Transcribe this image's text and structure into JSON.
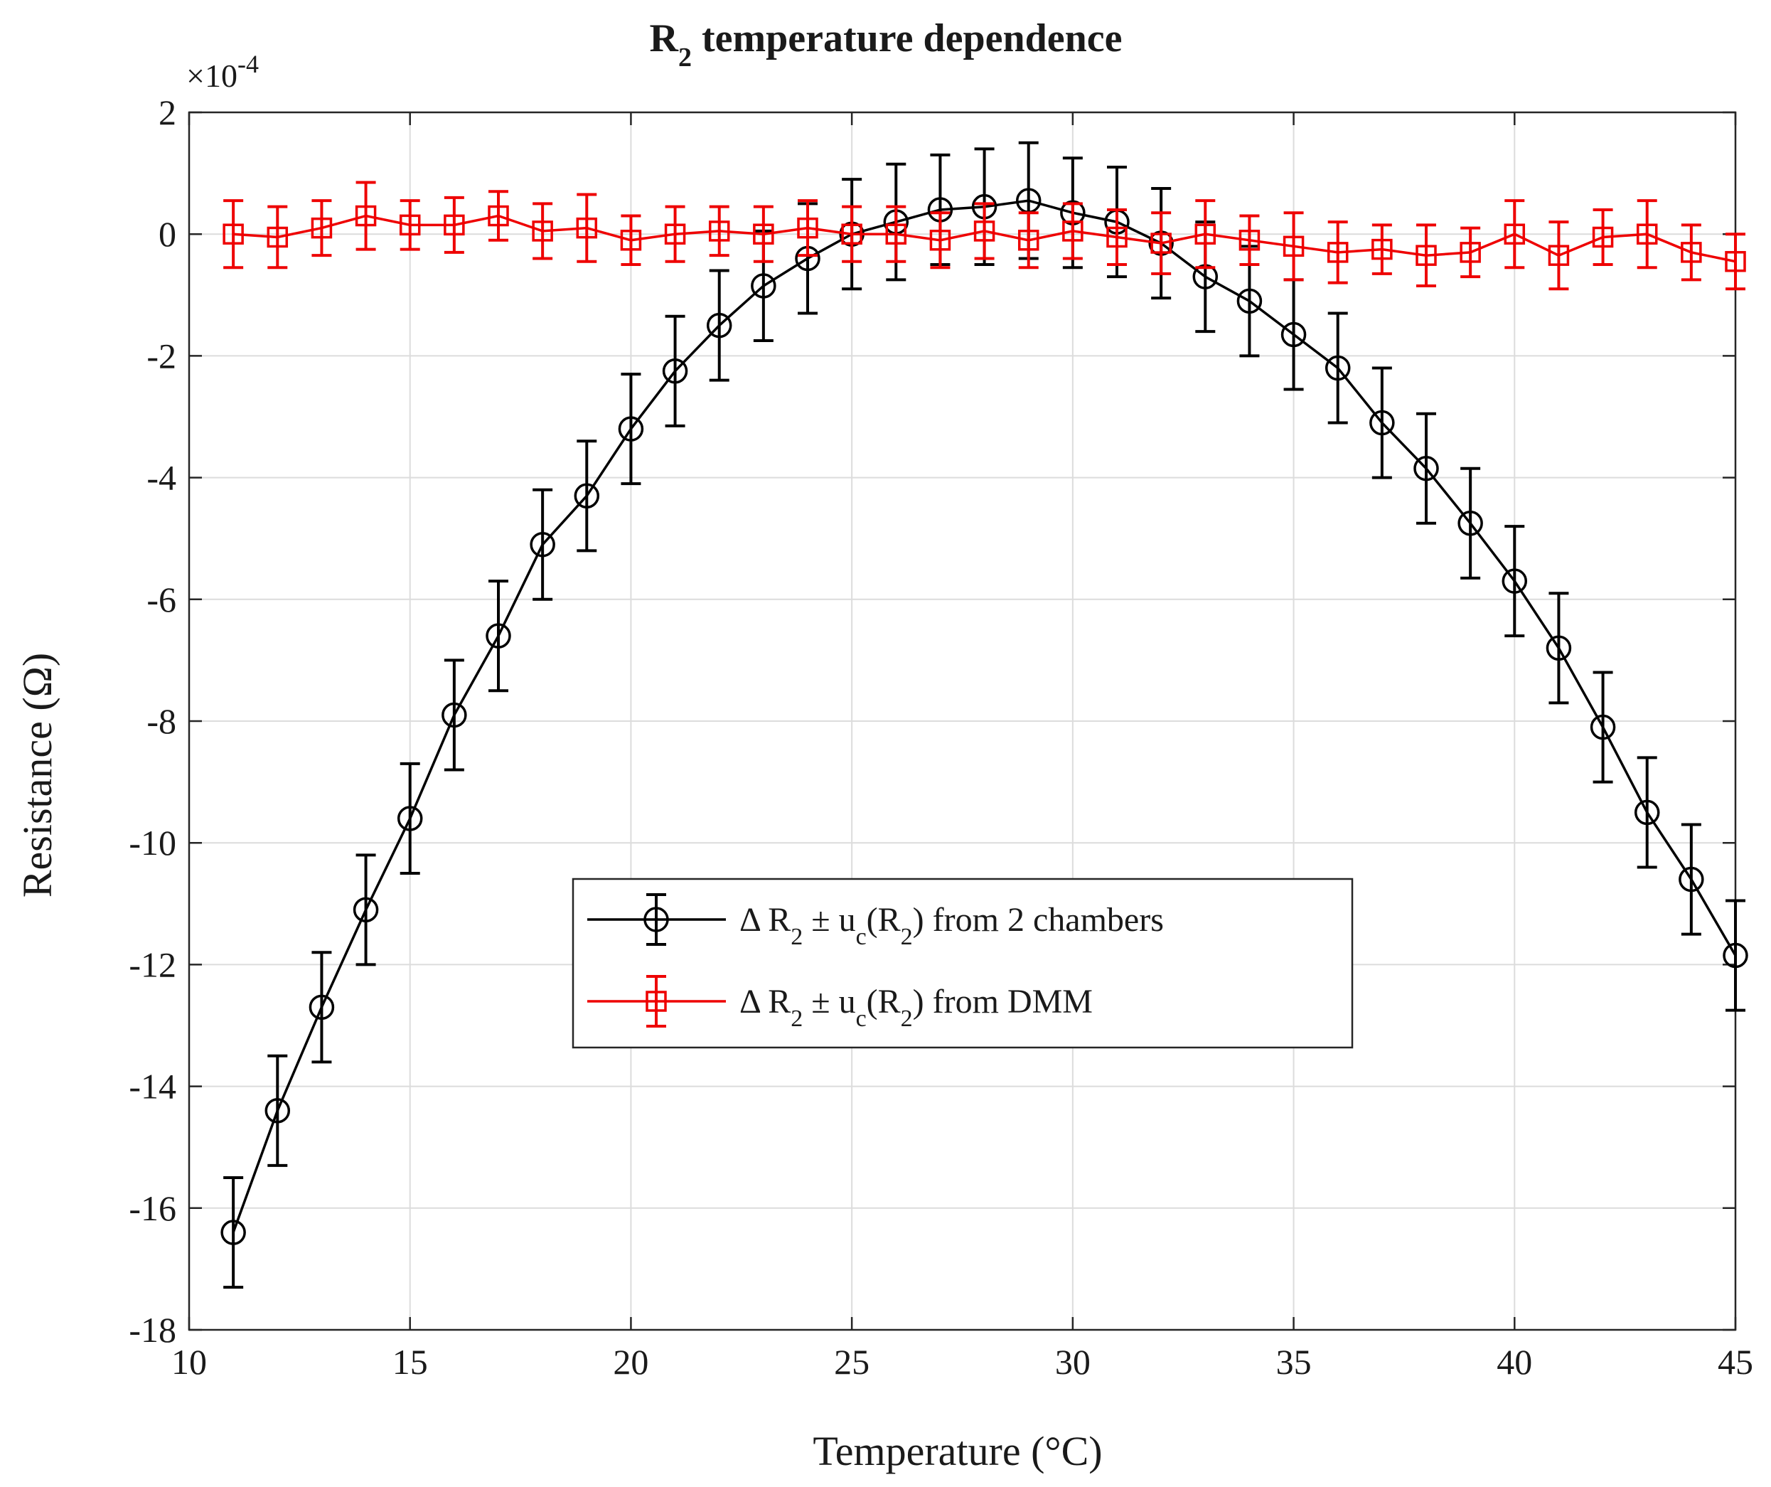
{
  "chart_data": {
    "type": "line",
    "title": {
      "main": "R",
      "sub": "2",
      "rest": " temperature dependence"
    },
    "xlabel": "Temperature (°C)",
    "ylabel": "Resistance (Ω)",
    "y_multiplier": {
      "base": "×10",
      "exp": "-4"
    },
    "xlim": [
      10,
      45
    ],
    "ylim": [
      -18,
      2
    ],
    "x_ticks": [
      10,
      15,
      20,
      25,
      30,
      35,
      40,
      45
    ],
    "y_ticks": [
      2,
      0,
      -2,
      -4,
      -6,
      -8,
      -10,
      -12,
      -14,
      -16,
      -18
    ],
    "grid": true,
    "legend_position": "center",
    "x": [
      11,
      12,
      13,
      14,
      15,
      16,
      17,
      18,
      19,
      20,
      21,
      22,
      23,
      24,
      25,
      26,
      27,
      28,
      29,
      30,
      31,
      32,
      33,
      34,
      35,
      36,
      37,
      38,
      39,
      40,
      41,
      42,
      43,
      44,
      45
    ],
    "series": [
      {
        "legend": [
          "Δ R",
          "2",
          " ± u",
          "c",
          "(R",
          "2",
          ") from 2 chambers"
        ],
        "color": "#000000",
        "marker": "circle",
        "values": [
          -16.4,
          -14.4,
          -12.7,
          -11.1,
          -9.6,
          -7.9,
          -6.6,
          -5.1,
          -4.3,
          -3.2,
          -2.25,
          -1.5,
          -0.85,
          -0.4,
          0.0,
          0.2,
          0.4,
          0.45,
          0.55,
          0.35,
          0.2,
          -0.15,
          -0.7,
          -1.1,
          -1.65,
          -2.2,
          -3.1,
          -3.85,
          -4.75,
          -5.7,
          -6.8,
          -8.1,
          -9.5,
          -10.6,
          -11.85
        ],
        "errors": [
          0.9,
          0.9,
          0.9,
          0.9,
          0.9,
          0.9,
          0.9,
          0.9,
          0.9,
          0.9,
          0.9,
          0.9,
          0.9,
          0.9,
          0.9,
          0.95,
          0.9,
          0.95,
          0.95,
          0.9,
          0.9,
          0.9,
          0.9,
          0.9,
          0.9,
          0.9,
          0.9,
          0.9,
          0.9,
          0.9,
          0.9,
          0.9,
          0.9,
          0.9,
          0.9
        ]
      },
      {
        "legend": [
          "Δ R",
          "2",
          " ± u",
          "c",
          "(R",
          "2",
          ") from DMM"
        ],
        "color": "#ee0000",
        "marker": "square",
        "values": [
          0.0,
          -0.05,
          0.1,
          0.3,
          0.15,
          0.15,
          0.3,
          0.05,
          0.1,
          -0.1,
          0.0,
          0.05,
          0.0,
          0.1,
          0.0,
          0.0,
          -0.1,
          0.05,
          -0.1,
          0.05,
          -0.05,
          -0.15,
          0.0,
          -0.1,
          -0.2,
          -0.3,
          -0.25,
          -0.35,
          -0.3,
          0.0,
          -0.35,
          -0.05,
          0.0,
          -0.3,
          -0.45
        ],
        "errors": [
          0.55,
          0.5,
          0.45,
          0.55,
          0.4,
          0.45,
          0.4,
          0.45,
          0.55,
          0.4,
          0.45,
          0.4,
          0.45,
          0.45,
          0.45,
          0.45,
          0.45,
          0.45,
          0.45,
          0.45,
          0.45,
          0.5,
          0.55,
          0.4,
          0.55,
          0.5,
          0.4,
          0.5,
          0.4,
          0.55,
          0.55,
          0.45,
          0.55,
          0.45,
          0.45
        ]
      }
    ]
  }
}
